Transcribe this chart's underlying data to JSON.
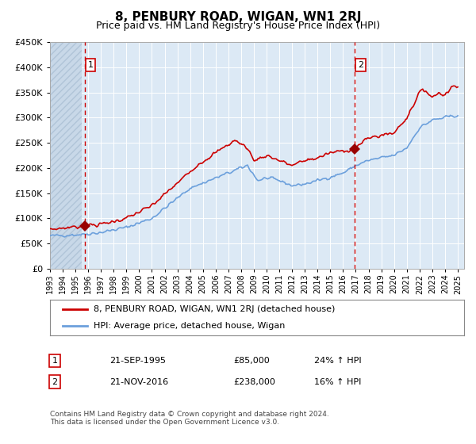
{
  "title": "8, PENBURY ROAD, WIGAN, WN1 2RJ",
  "subtitle": "Price paid vs. HM Land Registry's House Price Index (HPI)",
  "legend_line1": "8, PENBURY ROAD, WIGAN, WN1 2RJ (detached house)",
  "legend_line2": "HPI: Average price, detached house, Wigan",
  "annotation1_label": "1",
  "annotation1_date": "21-SEP-1995",
  "annotation1_price": "£85,000",
  "annotation1_hpi": "24% ↑ HPI",
  "annotation2_label": "2",
  "annotation2_date": "21-NOV-2016",
  "annotation2_price": "£238,000",
  "annotation2_hpi": "16% ↑ HPI",
  "footer": "Contains HM Land Registry data © Crown copyright and database right 2024.\nThis data is licensed under the Open Government Licence v3.0.",
  "sale1_year": 1995.72,
  "sale1_price": 85000,
  "sale2_year": 2016.89,
  "sale2_price": 238000,
  "hpi_color": "#6ca0dc",
  "price_color": "#cc0000",
  "sale_marker_color": "#990000",
  "bg_color": "#dce9f5",
  "grid_color": "#ffffff",
  "ylim": [
    0,
    450000
  ],
  "xlim_start": 1993.0,
  "xlim_end": 2025.5,
  "hpi_anchors": [
    [
      1993.0,
      65000
    ],
    [
      1995.5,
      68000
    ],
    [
      1997.0,
      72000
    ],
    [
      1999.0,
      82000
    ],
    [
      2001.0,
      100000
    ],
    [
      2002.5,
      130000
    ],
    [
      2004.0,
      160000
    ],
    [
      2005.5,
      175000
    ],
    [
      2007.5,
      195000
    ],
    [
      2008.5,
      205000
    ],
    [
      2009.3,
      175000
    ],
    [
      2010.0,
      180000
    ],
    [
      2011.0,
      175000
    ],
    [
      2012.0,
      165000
    ],
    [
      2013.0,
      168000
    ],
    [
      2014.0,
      175000
    ],
    [
      2015.0,
      182000
    ],
    [
      2016.0,
      190000
    ],
    [
      2017.0,
      205000
    ],
    [
      2018.0,
      215000
    ],
    [
      2019.0,
      220000
    ],
    [
      2020.0,
      225000
    ],
    [
      2021.0,
      240000
    ],
    [
      2022.0,
      280000
    ],
    [
      2023.0,
      295000
    ],
    [
      2024.0,
      300000
    ],
    [
      2025.0,
      305000
    ]
  ],
  "prop_anchors": [
    [
      1993.0,
      78000
    ],
    [
      1995.72,
      85000
    ],
    [
      1997.0,
      88000
    ],
    [
      1999.0,
      100000
    ],
    [
      2001.0,
      125000
    ],
    [
      2003.0,
      170000
    ],
    [
      2004.5,
      205000
    ],
    [
      2006.0,
      230000
    ],
    [
      2007.5,
      255000
    ],
    [
      2008.5,
      240000
    ],
    [
      2009.0,
      215000
    ],
    [
      2010.0,
      225000
    ],
    [
      2011.0,
      215000
    ],
    [
      2012.0,
      205000
    ],
    [
      2013.0,
      215000
    ],
    [
      2014.0,
      220000
    ],
    [
      2015.0,
      230000
    ],
    [
      2016.89,
      238000
    ],
    [
      2017.5,
      250000
    ],
    [
      2018.0,
      260000
    ],
    [
      2019.0,
      265000
    ],
    [
      2020.0,
      270000
    ],
    [
      2021.0,
      300000
    ],
    [
      2022.0,
      350000
    ],
    [
      2022.5,
      355000
    ],
    [
      2023.0,
      340000
    ],
    [
      2023.5,
      350000
    ],
    [
      2024.0,
      345000
    ],
    [
      2024.5,
      360000
    ],
    [
      2025.0,
      365000
    ]
  ]
}
